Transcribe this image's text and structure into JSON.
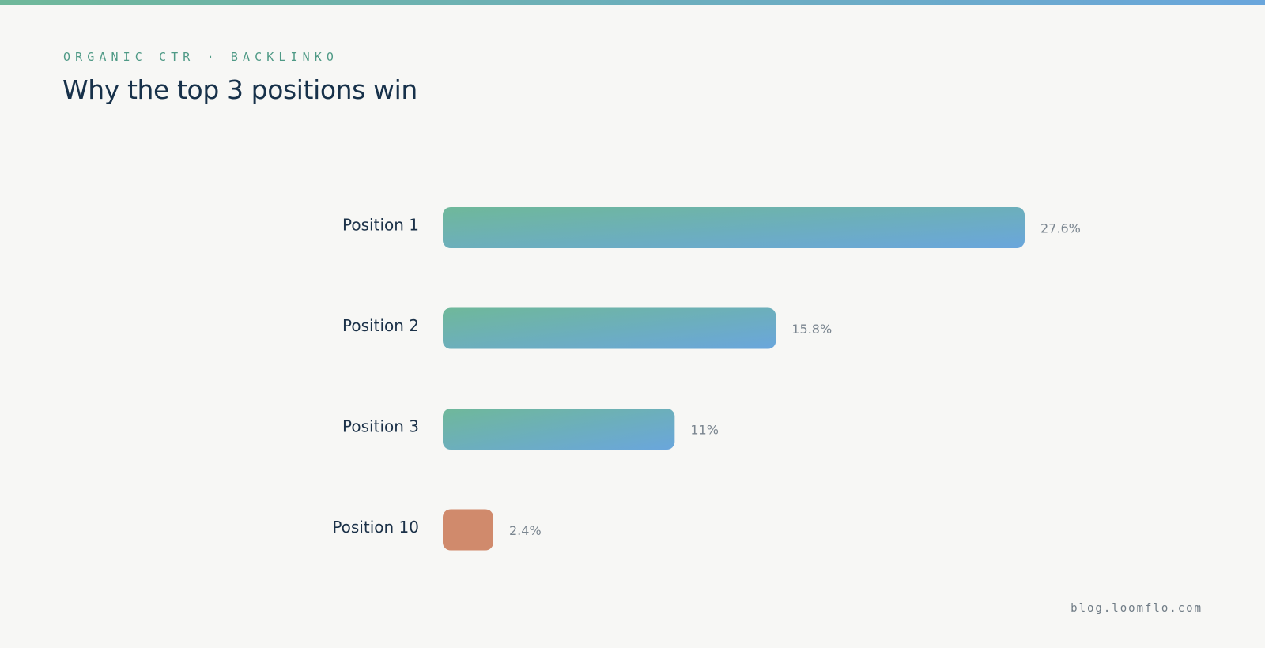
{
  "eyebrow": "ORGANIC CTR · BACKLINKO",
  "title": "Why the top 3 positions win",
  "footer": "blog.loomflo.com",
  "colors": {
    "accent_start": "#6fb89a",
    "accent_end": "#6aa6dc",
    "highlight_bar": "#d08a6c",
    "title_text": "#17314a",
    "value_text": "#7b8690"
  },
  "chart_data": {
    "type": "bar",
    "orientation": "horizontal",
    "title": "Why the top 3 positions win",
    "categories": [
      "Position 1",
      "Position 2",
      "Position 3",
      "Position 10"
    ],
    "values": [
      27.6,
      15.8,
      11,
      2.4
    ],
    "value_labels": [
      "27.6%",
      "15.8%",
      "11%",
      "2.4%"
    ],
    "unit": "%",
    "xlabel": "",
    "ylabel": "",
    "xlim": [
      0,
      27.6
    ],
    "grid": false,
    "legend": "none",
    "bar_styles": [
      "gradient",
      "gradient",
      "gradient",
      "highlight"
    ]
  }
}
